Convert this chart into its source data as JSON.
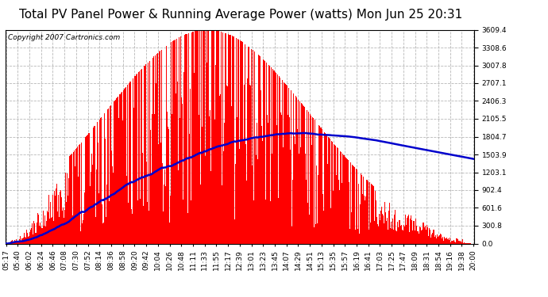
{
  "title": "Total PV Panel Power & Running Average Power (watts) Mon Jun 25 20:31",
  "copyright": "Copyright 2007 Cartronics.com",
  "y_ticks": [
    0.0,
    300.8,
    601.6,
    902.4,
    1203.1,
    1503.9,
    1804.7,
    2105.5,
    2406.3,
    2707.1,
    3007.8,
    3308.6,
    3609.4
  ],
  "y_max": 3609.4,
  "x_labels": [
    "05:17",
    "05:40",
    "06:02",
    "06:24",
    "06:46",
    "07:08",
    "07:30",
    "07:52",
    "08:14",
    "08:36",
    "08:58",
    "09:20",
    "09:42",
    "10:04",
    "10:26",
    "10:48",
    "11:11",
    "11:33",
    "11:55",
    "12:17",
    "12:39",
    "13:01",
    "13:23",
    "13:45",
    "14:07",
    "14:29",
    "14:51",
    "15:13",
    "15:35",
    "15:57",
    "16:19",
    "16:41",
    "17:03",
    "17:25",
    "17:47",
    "18:09",
    "18:31",
    "18:54",
    "19:16",
    "19:38",
    "20:00"
  ],
  "bar_color": "#ff0000",
  "line_color": "#0000cc",
  "background_color": "#ffffff",
  "grid_color": "#b0b0b0",
  "title_fontsize": 11,
  "copyright_fontsize": 6.5,
  "tick_fontsize": 6.5
}
